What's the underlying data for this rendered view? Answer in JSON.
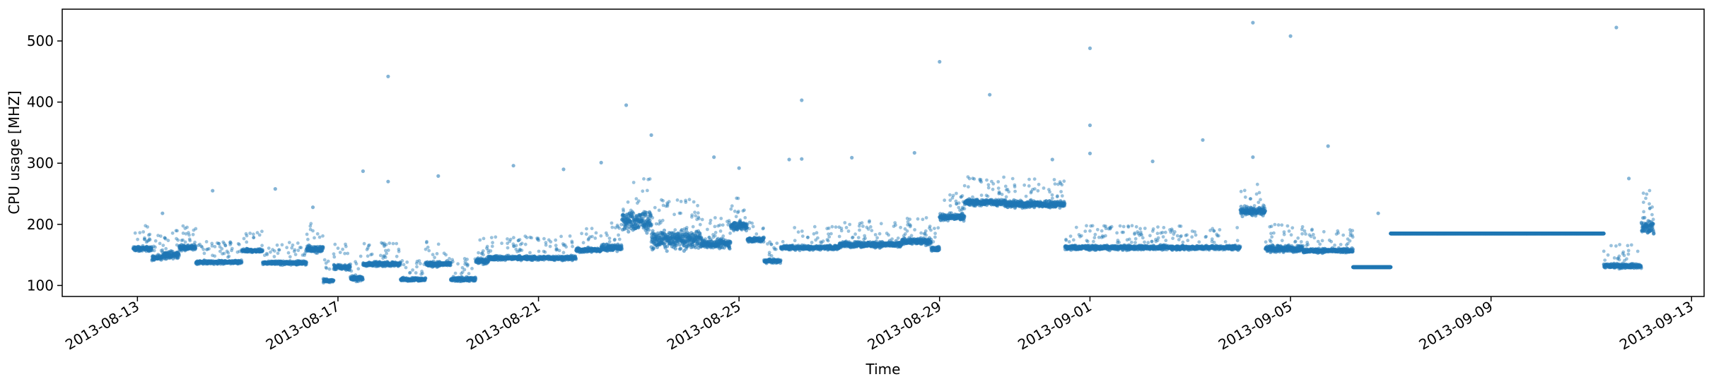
{
  "chart_data": {
    "type": "scatter",
    "title": "",
    "xlabel": "Time",
    "ylabel": "CPU usage [MHZ]",
    "x_axis_type": "date",
    "xlim": [
      "2013-08-11T12:00",
      "2013-09-13T06:00"
    ],
    "ylim": [
      82,
      552
    ],
    "grid": false,
    "legend": "none",
    "color": "#1f77b4",
    "x_ticks": [
      "2013-08-13",
      "2013-08-17",
      "2013-08-21",
      "2013-08-25",
      "2013-08-29",
      "2013-09-01",
      "2013-09-05",
      "2013-09-09",
      "2013-09-13"
    ],
    "y_ticks": [
      100,
      200,
      300,
      400,
      500
    ],
    "segments": [
      {
        "start": "2013-08-12T22:00",
        "end": "2013-08-13T07:00",
        "level": 160,
        "spread": 6
      },
      {
        "start": "2013-08-13T07:00",
        "end": "2013-08-13T12:00",
        "level": 145,
        "spread": 6
      },
      {
        "start": "2013-08-13T12:00",
        "end": "2013-08-13T20:00",
        "level": 150,
        "spread": 8
      },
      {
        "start": "2013-08-13T20:00",
        "end": "2013-08-14T04:00",
        "level": 162,
        "spread": 6
      },
      {
        "start": "2013-08-14T04:00",
        "end": "2013-08-15T02:00",
        "level": 138,
        "spread": 4
      },
      {
        "start": "2013-08-15T02:00",
        "end": "2013-08-15T12:00",
        "level": 157,
        "spread": 4
      },
      {
        "start": "2013-08-15T12:00",
        "end": "2013-08-16T09:00",
        "level": 137,
        "spread": 4
      },
      {
        "start": "2013-08-16T09:00",
        "end": "2013-08-16T17:00",
        "level": 160,
        "spread": 8
      },
      {
        "start": "2013-08-16T17:00",
        "end": "2013-08-16T22:00",
        "level": 108,
        "spread": 4
      },
      {
        "start": "2013-08-16T22:00",
        "end": "2013-08-17T06:00",
        "level": 130,
        "spread": 6
      },
      {
        "start": "2013-08-17T06:00",
        "end": "2013-08-17T12:00",
        "level": 112,
        "spread": 6
      },
      {
        "start": "2013-08-17T12:00",
        "end": "2013-08-18T06:00",
        "level": 135,
        "spread": 5
      },
      {
        "start": "2013-08-18T06:00",
        "end": "2013-08-18T18:00",
        "level": 110,
        "spread": 4
      },
      {
        "start": "2013-08-18T18:00",
        "end": "2013-08-19T06:00",
        "level": 135,
        "spread": 6
      },
      {
        "start": "2013-08-19T06:00",
        "end": "2013-08-19T18:00",
        "level": 110,
        "spread": 5
      },
      {
        "start": "2013-08-19T18:00",
        "end": "2013-08-20T00:00",
        "level": 140,
        "spread": 6
      },
      {
        "start": "2013-08-20T00:00",
        "end": "2013-08-21T18:00",
        "level": 145,
        "spread": 5
      },
      {
        "start": "2013-08-21T18:00",
        "end": "2013-08-22T06:00",
        "level": 158,
        "spread": 5
      },
      {
        "start": "2013-08-22T06:00",
        "end": "2013-08-22T16:00",
        "level": 162,
        "spread": 8
      },
      {
        "start": "2013-08-22T16:00",
        "end": "2013-08-23T06:00",
        "level": 205,
        "spread": 22
      },
      {
        "start": "2013-08-23T06:00",
        "end": "2013-08-24T06:00",
        "level": 175,
        "spread": 20
      },
      {
        "start": "2013-08-24T06:00",
        "end": "2013-08-24T20:00",
        "level": 168,
        "spread": 10
      },
      {
        "start": "2013-08-24T20:00",
        "end": "2013-08-25T04:00",
        "level": 198,
        "spread": 10
      },
      {
        "start": "2013-08-25T04:00",
        "end": "2013-08-25T12:00",
        "level": 175,
        "spread": 6
      },
      {
        "start": "2013-08-25T12:00",
        "end": "2013-08-25T20:00",
        "level": 140,
        "spread": 5
      },
      {
        "start": "2013-08-25T20:00",
        "end": "2013-08-27T00:00",
        "level": 162,
        "spread": 5
      },
      {
        "start": "2013-08-27T00:00",
        "end": "2013-08-28T06:00",
        "level": 167,
        "spread": 7
      },
      {
        "start": "2013-08-28T06:00",
        "end": "2013-08-28T20:00",
        "level": 172,
        "spread": 7
      },
      {
        "start": "2013-08-28T20:00",
        "end": "2013-08-29T00:00",
        "level": 160,
        "spread": 5
      },
      {
        "start": "2013-08-29T00:00",
        "end": "2013-08-29T12:00",
        "level": 212,
        "spread": 8
      },
      {
        "start": "2013-08-29T12:00",
        "end": "2013-08-30T08:00",
        "level": 236,
        "spread": 8
      },
      {
        "start": "2013-08-30T08:00",
        "end": "2013-08-31T12:00",
        "level": 233,
        "spread": 8
      },
      {
        "start": "2013-08-31T12:00",
        "end": "2013-09-04T00:00",
        "level": 162,
        "spread": 5
      },
      {
        "start": "2013-09-04T00:00",
        "end": "2013-09-04T12:00",
        "level": 222,
        "spread": 10
      },
      {
        "start": "2013-09-04T12:00",
        "end": "2013-09-05T06:00",
        "level": 160,
        "spread": 8
      },
      {
        "start": "2013-09-05T06:00",
        "end": "2013-09-06T06:00",
        "level": 157,
        "spread": 5
      },
      {
        "start": "2013-09-06T06:00",
        "end": "2013-09-07T00:00",
        "level": 130,
        "spread": 1
      },
      {
        "start": "2013-09-07T00:00",
        "end": "2013-09-11T06:00",
        "level": 185,
        "spread": 1
      },
      {
        "start": "2013-09-11T06:00",
        "end": "2013-09-12T00:00",
        "level": 132,
        "spread": 5
      },
      {
        "start": "2013-09-12T00:00",
        "end": "2013-09-12T06:00",
        "level": 195,
        "spread": 20
      }
    ],
    "outliers": [
      {
        "x": "2013-08-13T12:00",
        "y": 218
      },
      {
        "x": "2013-08-14T12:00",
        "y": 255
      },
      {
        "x": "2013-08-15T18:00",
        "y": 258
      },
      {
        "x": "2013-08-16T12:00",
        "y": 228
      },
      {
        "x": "2013-08-17T12:00",
        "y": 287
      },
      {
        "x": "2013-08-18T00:00",
        "y": 442
      },
      {
        "x": "2013-08-18T00:00",
        "y": 270
      },
      {
        "x": "2013-08-19T00:00",
        "y": 279
      },
      {
        "x": "2013-08-20T12:00",
        "y": 296
      },
      {
        "x": "2013-08-21T12:00",
        "y": 290
      },
      {
        "x": "2013-08-22T06:00",
        "y": 301
      },
      {
        "x": "2013-08-22T18:00",
        "y": 395
      },
      {
        "x": "2013-08-23T06:00",
        "y": 346
      },
      {
        "x": "2013-08-24T12:00",
        "y": 310
      },
      {
        "x": "2013-08-25T00:00",
        "y": 292
      },
      {
        "x": "2013-08-26T00:00",
        "y": 306
      },
      {
        "x": "2013-08-26T06:00",
        "y": 403
      },
      {
        "x": "2013-08-26T06:00",
        "y": 307
      },
      {
        "x": "2013-08-27T06:00",
        "y": 309
      },
      {
        "x": "2013-08-28T12:00",
        "y": 317
      },
      {
        "x": "2013-08-29T00:00",
        "y": 466
      },
      {
        "x": "2013-08-30T00:00",
        "y": 412
      },
      {
        "x": "2013-08-31T06:00",
        "y": 306
      },
      {
        "x": "2013-09-01T00:00",
        "y": 488
      },
      {
        "x": "2013-09-01T00:00",
        "y": 362
      },
      {
        "x": "2013-09-01T00:00",
        "y": 316
      },
      {
        "x": "2013-09-02T06:00",
        "y": 303
      },
      {
        "x": "2013-09-03T06:00",
        "y": 338
      },
      {
        "x": "2013-09-04T06:00",
        "y": 530
      },
      {
        "x": "2013-09-04T06:00",
        "y": 310
      },
      {
        "x": "2013-09-05T00:00",
        "y": 508
      },
      {
        "x": "2013-09-05T18:00",
        "y": 328
      },
      {
        "x": "2013-09-06T18:00",
        "y": 218
      },
      {
        "x": "2013-09-11T12:00",
        "y": 522
      },
      {
        "x": "2013-09-11T18:00",
        "y": 275
      }
    ]
  }
}
